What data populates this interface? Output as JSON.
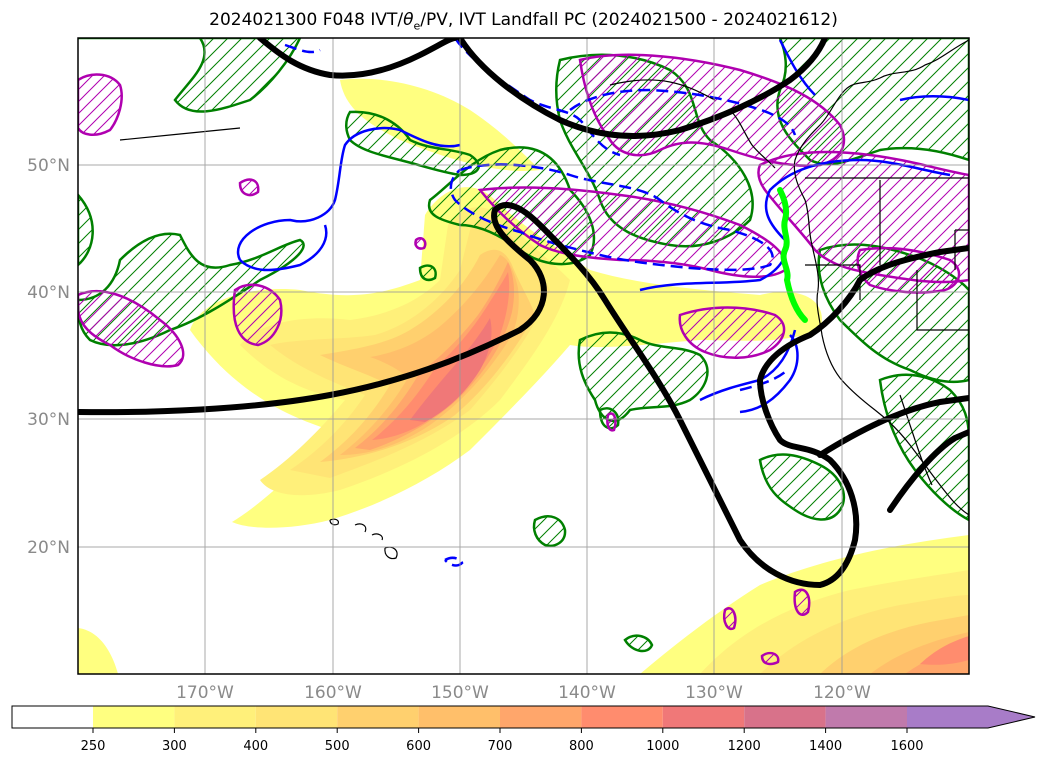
{
  "title": {
    "prefix": "2024021300 F048 IVT/",
    "theta": "θ",
    "theta_sub": "e",
    "suffix": "/PV, IVT Landfall PC (2024021500 - 2024021612)"
  },
  "map": {
    "lat_labels": [
      "50°N",
      "40°N",
      "30°N",
      "20°N"
    ],
    "lat_values": [
      50,
      40,
      30,
      20
    ],
    "lon_labels": [
      "170°W",
      "160°W",
      "150°W",
      "140°W",
      "130°W",
      "120°W"
    ],
    "lon_values": [
      -170,
      -160,
      -150,
      -140,
      -130,
      -120
    ],
    "extent": {
      "lon_min": -180,
      "lon_max": -110,
      "lat_min": 10,
      "lat_max": 60
    },
    "colors": {
      "theta_e": "#000000",
      "pv_positive": "#0000ff",
      "pv_hatch": "#008000",
      "jet_hatch": "#b000b0",
      "landfall_pc": "#00ff00"
    }
  },
  "colorbar": {
    "levels": [
      "250",
      "300",
      "400",
      "500",
      "600",
      "700",
      "800",
      "1000",
      "1200",
      "1400",
      "1600"
    ],
    "colors": [
      "#ffff80",
      "#fff07a",
      "#ffe475",
      "#ffd06e",
      "#ffbf6a",
      "#ffa66b",
      "#ff8c6e",
      "#f07878",
      "#d8728a",
      "#c07aac",
      "#a87cc8"
    ],
    "extend": "max"
  }
}
